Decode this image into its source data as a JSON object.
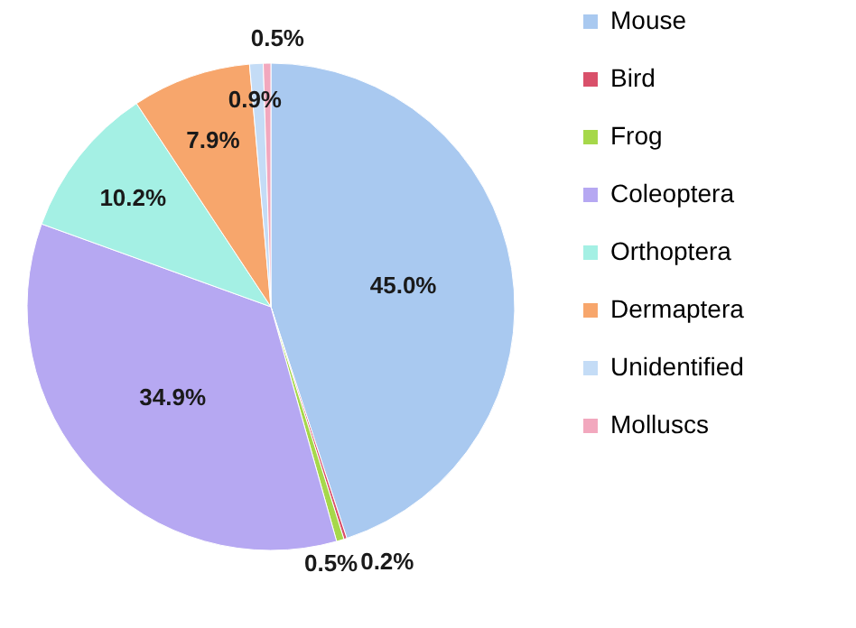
{
  "chart_data": {
    "type": "pie",
    "categories": [
      "Mouse",
      "Bird",
      "Frog",
      "Coleoptera",
      "Orthoptera",
      "Dermaptera",
      "Unidentified",
      "Molluscs"
    ],
    "values": [
      45.0,
      0.2,
      0.5,
      34.9,
      10.2,
      7.9,
      0.9,
      0.5
    ],
    "colors": [
      "#a9c9f0",
      "#d9506a",
      "#a6d84a",
      "#b6a8f2",
      "#a4f0e4",
      "#f7a66c",
      "#c4dcf6",
      "#f2a8be"
    ],
    "value_labels": [
      "45.0%",
      "0.2%",
      "0.5%",
      "34.9%",
      "10.2%",
      "7.9%",
      "0.9%",
      "0.5%"
    ],
    "legend": "right"
  }
}
